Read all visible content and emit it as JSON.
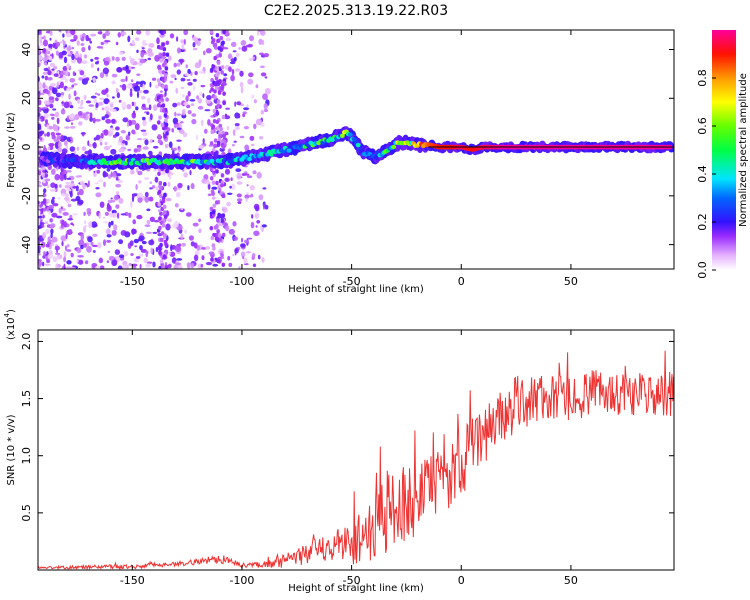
{
  "title": "C2E2.2025.313.19.22.R03",
  "chart_data": [
    {
      "type": "heatmap",
      "panel": "top",
      "xlabel": "Height of straight line (km)",
      "ylabel": "Frequency (Hz)",
      "xlim": [
        -193,
        97
      ],
      "ylim": [
        -50,
        48
      ],
      "xticks": [
        -150,
        -100,
        -50,
        0,
        50
      ],
      "xtick_labels": [
        "-150",
        "-100",
        "-50",
        "0",
        "50"
      ],
      "yticks": [
        -40,
        -20,
        0,
        20,
        40
      ],
      "ytick_labels": [
        "-40",
        "-20",
        "0",
        "20",
        "40"
      ],
      "colorbar": {
        "label": "Normalized spectral amplitude",
        "range": [
          0,
          1
        ],
        "ticks": [
          0.0,
          0.2,
          0.4,
          0.6,
          0.8
        ],
        "tick_labels": [
          "0.0",
          "0.2",
          "0.4",
          "0.6",
          "0.8"
        ]
      },
      "ridge": {
        "description": "frequency of dominant spectral peak vs height",
        "x": [
          -190,
          -170,
          -155,
          -140,
          -125,
          -115,
          -108,
          -100,
          -90,
          -80,
          -70,
          -60,
          -52,
          -48,
          -45,
          -40,
          -35,
          -30,
          -27,
          -22,
          -15,
          -10,
          -5,
          0,
          5,
          10,
          20,
          40,
          60,
          80,
          95
        ],
        "y": [
          -5,
          -6,
          -6,
          -6,
          -6,
          -6,
          -6,
          -5,
          -3,
          -1,
          1,
          3,
          6,
          2,
          -2,
          -4,
          -2,
          1,
          2,
          1,
          1,
          0,
          0,
          0,
          -1,
          0,
          0,
          0,
          0,
          0,
          0
        ],
        "amplitude": [
          0.15,
          0.3,
          0.45,
          0.4,
          0.45,
          0.4,
          0.3,
          0.3,
          0.35,
          0.35,
          0.4,
          0.45,
          0.5,
          0.4,
          0.3,
          0.35,
          0.4,
          0.5,
          0.55,
          0.6,
          0.85,
          0.9,
          0.9,
          0.95,
          0.9,
          0.95,
          1.0,
          1.0,
          1.0,
          1.0,
          1.0
        ]
      }
    },
    {
      "type": "line",
      "panel": "bottom",
      "xlabel": "Height of straight line (km)",
      "ylabel": "SNR (10 * v/v)",
      "y_scale_label": "(x10",
      "y_scale_exp": "4",
      "xlim": [
        -193,
        97
      ],
      "ylim": [
        0,
        2.1
      ],
      "xticks": [
        -150,
        -100,
        -50,
        0,
        50
      ],
      "xtick_labels": [
        "-150",
        "-100",
        "-50",
        "0",
        "50"
      ],
      "yticks": [
        0.5,
        1.0,
        1.5,
        2.0
      ],
      "ytick_labels": [
        "0.5",
        "1.0",
        "1.5",
        "2.0"
      ],
      "color": "#ee3333",
      "series_envelope": {
        "x": [
          -193,
          -150,
          -125,
          -110,
          -100,
          -90,
          -80,
          -70,
          -60,
          -50,
          -45,
          -40,
          -37,
          -35,
          -30,
          -25,
          -20,
          -15,
          -10,
          -5,
          0,
          5,
          10,
          15,
          20,
          25,
          30,
          40,
          50,
          60,
          70,
          80,
          90,
          97
        ],
        "mean": [
          0.02,
          0.03,
          0.06,
          0.1,
          0.04,
          0.05,
          0.08,
          0.15,
          0.2,
          0.25,
          0.3,
          0.35,
          0.6,
          0.5,
          0.55,
          0.6,
          0.6,
          0.7,
          0.75,
          0.85,
          0.95,
          1.05,
          1.2,
          1.3,
          1.35,
          1.45,
          1.5,
          1.5,
          1.5,
          1.55,
          1.55,
          1.55,
          1.5,
          1.55
        ],
        "spread": [
          0.01,
          0.02,
          0.02,
          0.04,
          0.02,
          0.03,
          0.06,
          0.1,
          0.12,
          0.2,
          0.25,
          0.3,
          0.5,
          0.4,
          0.35,
          0.35,
          0.3,
          0.3,
          0.3,
          0.3,
          0.3,
          0.3,
          0.3,
          0.25,
          0.25,
          0.25,
          0.25,
          0.2,
          0.2,
          0.2,
          0.2,
          0.2,
          0.2,
          0.2
        ]
      }
    }
  ]
}
